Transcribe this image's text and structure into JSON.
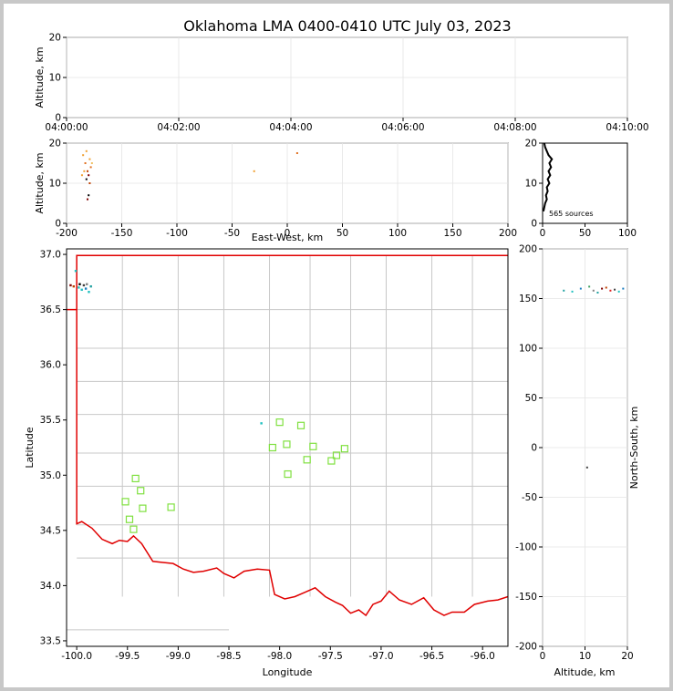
{
  "title": "Oklahoma LMA 0400-0410 UTC July 03, 2023",
  "chart_data": [
    {
      "panel": "altitude-vs-time",
      "type": "scatter",
      "ylabel": "Altitude, km",
      "ylim": [
        0,
        20
      ],
      "yticks": [
        0,
        10,
        20
      ],
      "xticks": [
        "04:00:00",
        "04:02:00",
        "04:04:00",
        "04:06:00",
        "04:08:00",
        "04:10:00"
      ],
      "grid": true,
      "sources": []
    },
    {
      "panel": "altitude-vs-east-west",
      "type": "scatter",
      "xlabel": "East-West, km",
      "ylabel": "Altitude, km",
      "xlim": [
        -200,
        200
      ],
      "ylim": [
        0,
        20
      ],
      "xticks": [
        -200,
        -150,
        -100,
        -50,
        0,
        50,
        100,
        150,
        200
      ],
      "yticks": [
        0,
        10,
        20
      ],
      "grid": true,
      "sources": [
        {
          "x": -185,
          "y": 17,
          "c": "#f0a030"
        },
        {
          "x": -183,
          "y": 15,
          "c": "#e07020"
        },
        {
          "x": -181,
          "y": 13,
          "c": "#c04000"
        },
        {
          "x": -180,
          "y": 12,
          "c": "#800000"
        },
        {
          "x": -182,
          "y": 11,
          "c": "#000000"
        },
        {
          "x": -179,
          "y": 16,
          "c": "#f0a030"
        },
        {
          "x": -178,
          "y": 14,
          "c": "#e07020"
        },
        {
          "x": -184,
          "y": 13,
          "c": "#f0a030"
        },
        {
          "x": -180,
          "y": 7,
          "c": "#000000"
        },
        {
          "x": -181,
          "y": 6,
          "c": "#800000"
        },
        {
          "x": -186,
          "y": 12,
          "c": "#f0a030"
        },
        {
          "x": -177,
          "y": 15,
          "c": "#f0c060"
        },
        {
          "x": -182,
          "y": 18,
          "c": "#f0a030"
        },
        {
          "x": -179,
          "y": 10,
          "c": "#c04000"
        },
        {
          "x": -30,
          "y": 13,
          "c": "#f0a030"
        },
        {
          "x": 9,
          "y": 17.5,
          "c": "#e07020"
        }
      ]
    },
    {
      "panel": "altitude-histogram",
      "type": "line",
      "xlim": [
        0,
        100
      ],
      "ylim": [
        0,
        20
      ],
      "xticks": [
        0,
        50,
        100
      ],
      "yticks": [
        0,
        10,
        20
      ],
      "annotation": "565 sources",
      "counts": [
        {
          "alt": 3,
          "n": 1
        },
        {
          "alt": 5,
          "n": 3
        },
        {
          "alt": 6,
          "n": 5
        },
        {
          "alt": 7,
          "n": 4
        },
        {
          "alt": 8,
          "n": 6
        },
        {
          "alt": 9,
          "n": 5
        },
        {
          "alt": 10,
          "n": 8
        },
        {
          "alt": 11,
          "n": 6
        },
        {
          "alt": 12,
          "n": 9
        },
        {
          "alt": 13,
          "n": 7
        },
        {
          "alt": 14,
          "n": 10
        },
        {
          "alt": 15,
          "n": 8
        },
        {
          "alt": 16,
          "n": 11
        },
        {
          "alt": 17,
          "n": 7
        },
        {
          "alt": 18,
          "n": 5
        },
        {
          "alt": 19,
          "n": 3
        },
        {
          "alt": 20,
          "n": 2
        }
      ]
    },
    {
      "panel": "plan-view-map",
      "type": "scatter",
      "xlabel": "Longitude",
      "ylabel": "Latitude",
      "xlim": [
        -100.1,
        -95.75
      ],
      "ylim": [
        33.45,
        37.05
      ],
      "xticks": [
        -100.0,
        -99.5,
        -99.0,
        -98.5,
        -98.0,
        -97.5,
        -97.0,
        -96.5,
        -96.0
      ],
      "yticks": [
        33.5,
        34.0,
        34.5,
        35.0,
        35.5,
        36.0,
        36.5,
        37.0
      ],
      "stations": [
        {
          "lon": -99.42,
          "lat": 34.97
        },
        {
          "lon": -99.37,
          "lat": 34.86
        },
        {
          "lon": -99.52,
          "lat": 34.76
        },
        {
          "lon": -99.35,
          "lat": 34.7
        },
        {
          "lon": -99.48,
          "lat": 34.6
        },
        {
          "lon": -99.44,
          "lat": 34.51
        },
        {
          "lon": -99.07,
          "lat": 34.71
        },
        {
          "lon": -98.0,
          "lat": 35.48
        },
        {
          "lon": -98.07,
          "lat": 35.25
        },
        {
          "lon": -97.93,
          "lat": 35.28
        },
        {
          "lon": -97.79,
          "lat": 35.45
        },
        {
          "lon": -97.67,
          "lat": 35.26
        },
        {
          "lon": -97.73,
          "lat": 35.14
        },
        {
          "lon": -97.92,
          "lat": 35.01
        },
        {
          "lon": -97.49,
          "lat": 35.13
        },
        {
          "lon": -97.44,
          "lat": 35.18
        },
        {
          "lon": -97.36,
          "lat": 35.24
        }
      ],
      "sources": [
        {
          "lon": -100.06,
          "lat": 36.72,
          "c": "#800000"
        },
        {
          "lon": -100.03,
          "lat": 36.71,
          "c": "#c04000"
        },
        {
          "lon": -99.98,
          "lat": 36.7,
          "c": "#20c0c0"
        },
        {
          "lon": -99.95,
          "lat": 36.68,
          "c": "#20c0c0"
        },
        {
          "lon": -99.93,
          "lat": 36.72,
          "c": "#404040"
        },
        {
          "lon": -99.91,
          "lat": 36.69,
          "c": "#2080c0"
        },
        {
          "lon": -99.88,
          "lat": 36.66,
          "c": "#20c0c0"
        },
        {
          "lon": -99.86,
          "lat": 36.71,
          "c": "#20a0a0"
        },
        {
          "lon": -100.01,
          "lat": 36.85,
          "c": "#20c0c0"
        },
        {
          "lon": -99.97,
          "lat": 36.73,
          "c": "#000000"
        },
        {
          "lon": -99.9,
          "lat": 36.73,
          "c": "#808080"
        },
        {
          "lon": -98.18,
          "lat": 35.47,
          "c": "#20c0c0"
        }
      ]
    },
    {
      "panel": "north-south-vs-altitude",
      "type": "scatter",
      "xlabel": "Altitude, km",
      "ylabel": "North-South, km",
      "xlim": [
        0,
        20
      ],
      "ylim": [
        -200,
        200
      ],
      "xticks": [
        0,
        10,
        20
      ],
      "yticks": [
        -200,
        -150,
        -100,
        -50,
        0,
        50,
        100,
        150,
        200
      ],
      "grid": true,
      "sources": [
        {
          "x": 5,
          "y": 158,
          "c": "#20a0a0"
        },
        {
          "x": 7,
          "y": 157,
          "c": "#20c0c0"
        },
        {
          "x": 9,
          "y": 160,
          "c": "#2080c0"
        },
        {
          "x": 11,
          "y": 162,
          "c": "#40a060"
        },
        {
          "x": 12,
          "y": 158,
          "c": "#808080"
        },
        {
          "x": 13,
          "y": 156,
          "c": "#20a0a0"
        },
        {
          "x": 14,
          "y": 160,
          "c": "#800000"
        },
        {
          "x": 15,
          "y": 161,
          "c": "#c04000"
        },
        {
          "x": 16,
          "y": 158,
          "c": "#e02020"
        },
        {
          "x": 17,
          "y": 159,
          "c": "#404040"
        },
        {
          "x": 18,
          "y": 157,
          "c": "#20c0c0"
        },
        {
          "x": 19,
          "y": 160,
          "c": "#2080c0"
        },
        {
          "x": 10.5,
          "y": -20,
          "c": "#404040"
        }
      ]
    }
  ]
}
